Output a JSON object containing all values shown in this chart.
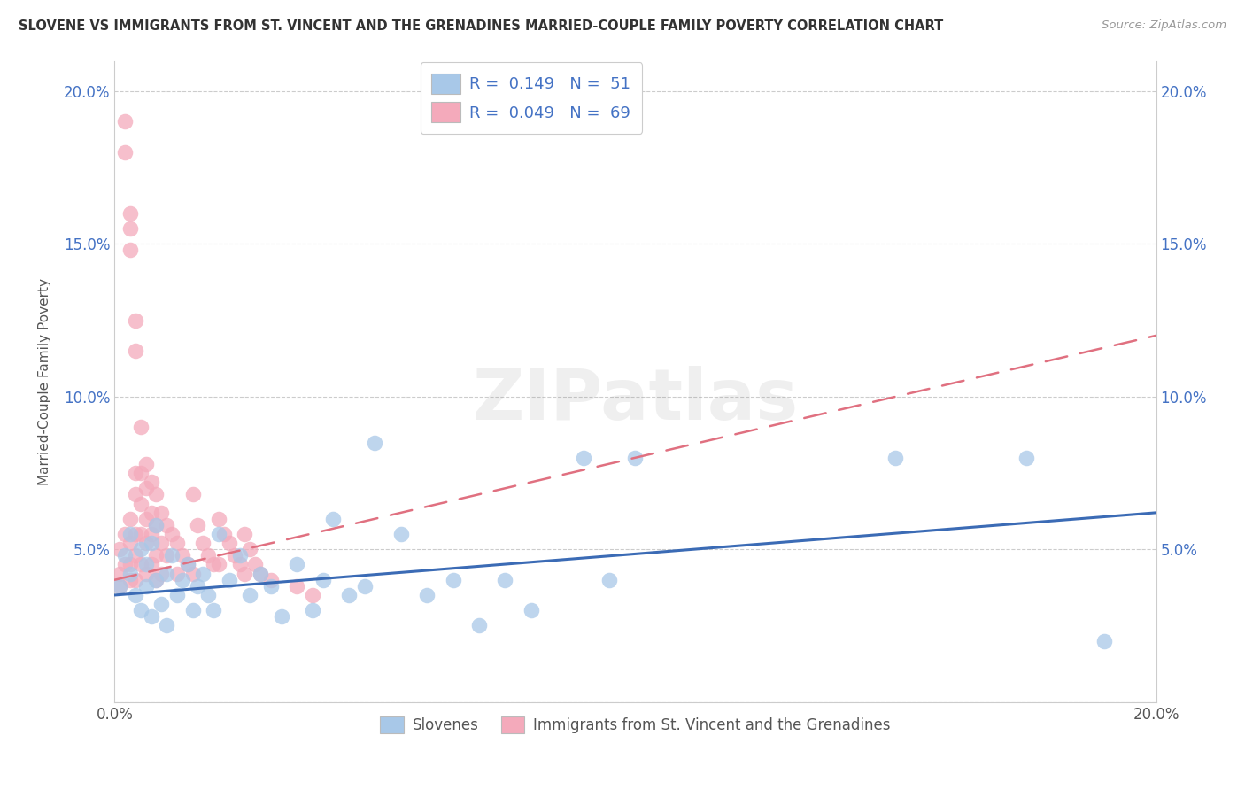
{
  "title": "SLOVENE VS IMMIGRANTS FROM ST. VINCENT AND THE GRENADINES MARRIED-COUPLE FAMILY POVERTY CORRELATION CHART",
  "source": "Source: ZipAtlas.com",
  "ylabel": "Married-Couple Family Poverty",
  "legend_bottom": [
    "Slovenes",
    "Immigrants from St. Vincent and the Grenadines"
  ],
  "blue_R": 0.149,
  "blue_N": 51,
  "pink_R": 0.049,
  "pink_N": 69,
  "xlim": [
    0.0,
    0.2
  ],
  "ylim": [
    0.0,
    0.21
  ],
  "xticks": [
    0.0,
    0.05,
    0.1,
    0.15,
    0.2
  ],
  "yticks": [
    0.0,
    0.05,
    0.1,
    0.15,
    0.2
  ],
  "blue_color": "#A8C8E8",
  "pink_color": "#F4AABB",
  "blue_line_color": "#3B6BB5",
  "pink_line_color": "#E07080",
  "watermark": "ZIPatlas",
  "blue_line_x0": 0.0,
  "blue_line_y0": 0.035,
  "blue_line_x1": 0.2,
  "blue_line_y1": 0.062,
  "pink_line_x0": 0.0,
  "pink_line_y0": 0.04,
  "pink_line_x1": 0.2,
  "pink_line_y1": 0.12,
  "blue_scatter_x": [
    0.001,
    0.002,
    0.003,
    0.003,
    0.004,
    0.005,
    0.005,
    0.006,
    0.006,
    0.007,
    0.007,
    0.008,
    0.008,
    0.009,
    0.01,
    0.01,
    0.011,
    0.012,
    0.013,
    0.014,
    0.015,
    0.016,
    0.017,
    0.018,
    0.019,
    0.02,
    0.022,
    0.024,
    0.026,
    0.028,
    0.03,
    0.032,
    0.035,
    0.038,
    0.04,
    0.042,
    0.045,
    0.048,
    0.05,
    0.055,
    0.06,
    0.065,
    0.07,
    0.075,
    0.08,
    0.09,
    0.095,
    0.1,
    0.15,
    0.175,
    0.19
  ],
  "blue_scatter_y": [
    0.038,
    0.048,
    0.042,
    0.055,
    0.035,
    0.05,
    0.03,
    0.045,
    0.038,
    0.052,
    0.028,
    0.04,
    0.058,
    0.032,
    0.042,
    0.025,
    0.048,
    0.035,
    0.04,
    0.045,
    0.03,
    0.038,
    0.042,
    0.035,
    0.03,
    0.055,
    0.04,
    0.048,
    0.035,
    0.042,
    0.038,
    0.028,
    0.045,
    0.03,
    0.04,
    0.06,
    0.035,
    0.038,
    0.085,
    0.055,
    0.035,
    0.04,
    0.025,
    0.04,
    0.03,
    0.08,
    0.04,
    0.08,
    0.08,
    0.08,
    0.02
  ],
  "pink_scatter_x": [
    0.001,
    0.001,
    0.001,
    0.002,
    0.002,
    0.002,
    0.002,
    0.003,
    0.003,
    0.003,
    0.003,
    0.003,
    0.003,
    0.003,
    0.004,
    0.004,
    0.004,
    0.004,
    0.004,
    0.004,
    0.004,
    0.005,
    0.005,
    0.005,
    0.005,
    0.005,
    0.006,
    0.006,
    0.006,
    0.006,
    0.006,
    0.007,
    0.007,
    0.007,
    0.007,
    0.008,
    0.008,
    0.008,
    0.008,
    0.009,
    0.009,
    0.009,
    0.01,
    0.01,
    0.011,
    0.012,
    0.012,
    0.013,
    0.014,
    0.015,
    0.015,
    0.016,
    0.017,
    0.018,
    0.019,
    0.02,
    0.02,
    0.021,
    0.022,
    0.023,
    0.024,
    0.025,
    0.025,
    0.026,
    0.027,
    0.028,
    0.03,
    0.035,
    0.038
  ],
  "pink_scatter_y": [
    0.05,
    0.042,
    0.038,
    0.18,
    0.19,
    0.055,
    0.045,
    0.148,
    0.155,
    0.16,
    0.06,
    0.052,
    0.045,
    0.04,
    0.125,
    0.115,
    0.075,
    0.068,
    0.055,
    0.048,
    0.04,
    0.09,
    0.075,
    0.065,
    0.055,
    0.045,
    0.078,
    0.07,
    0.06,
    0.052,
    0.042,
    0.072,
    0.062,
    0.055,
    0.045,
    0.068,
    0.058,
    0.048,
    0.04,
    0.062,
    0.052,
    0.042,
    0.058,
    0.048,
    0.055,
    0.052,
    0.042,
    0.048,
    0.045,
    0.068,
    0.042,
    0.058,
    0.052,
    0.048,
    0.045,
    0.06,
    0.045,
    0.055,
    0.052,
    0.048,
    0.045,
    0.055,
    0.042,
    0.05,
    0.045,
    0.042,
    0.04,
    0.038,
    0.035
  ]
}
